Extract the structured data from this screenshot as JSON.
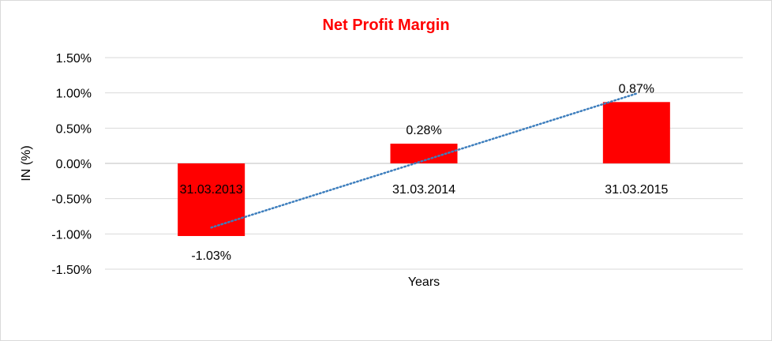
{
  "colors": {
    "title": "#ff0000",
    "bar": "#ff0000",
    "trendline": "#3d7ebd",
    "grid": "#d9d9d9",
    "axis": "#bfbfbf"
  },
  "chart_data": {
    "type": "bar",
    "title": "Net Profit Margin",
    "xlabel": "Years",
    "ylabel": "IN (%)",
    "categories": [
      "31.03.2013",
      "31.03.2014",
      "31.03.2015"
    ],
    "values": [
      -1.03,
      0.28,
      0.87
    ],
    "data_labels": [
      "-1.03%",
      "0.28%",
      "0.87%"
    ],
    "ylim": [
      -1.5,
      1.5
    ],
    "yticks": [
      1.5,
      1.0,
      0.5,
      0.0,
      -0.5,
      -1.0,
      -1.5
    ],
    "ytick_labels": [
      "1.50%",
      "1.00%",
      "0.50%",
      "0.00%",
      "-0.50%",
      "-1.00%",
      "-1.50%"
    ],
    "grid": true,
    "legend": "none",
    "trendline": {
      "type": "linear",
      "style": "dotted"
    }
  }
}
